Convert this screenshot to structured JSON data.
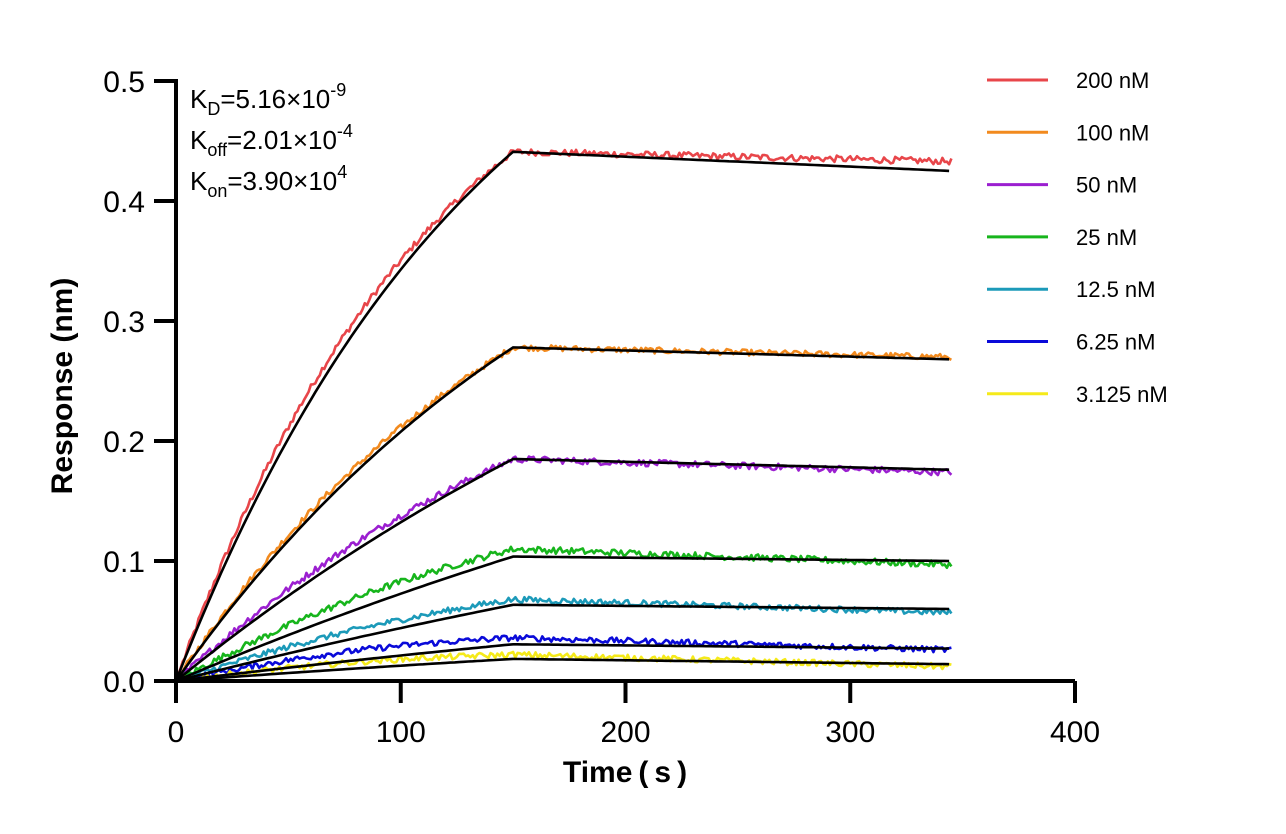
{
  "chart_data": {
    "type": "line",
    "xlabel": "Time ( s )",
    "ylabel": "Response (nm)",
    "xlim": [
      0,
      400
    ],
    "ylim": [
      0,
      0.5
    ],
    "x_ticks": [
      "0",
      "100",
      "200",
      "300",
      "400"
    ],
    "y_ticks": [
      "0.0",
      "0.1",
      "0.2",
      "0.3",
      "0.4",
      "0.5"
    ],
    "grid": false,
    "legend_position": "right",
    "association_end": 150,
    "measurement_end": 345,
    "annotations": {
      "kd": {
        "base": "K",
        "sub": "D",
        "text": "=5.16×10",
        "exp": "-9"
      },
      "koff": {
        "base": "K",
        "sub": "off",
        "text": "=2.01×10",
        "exp": "-4"
      },
      "kon": {
        "base": "K",
        "sub": "on",
        "text": "=3.90×10",
        "exp": "4"
      }
    },
    "fit_color": "#000000",
    "series": [
      {
        "name": "200 nM",
        "color": "#e8464a",
        "plateau": 0.441,
        "end": 0.433,
        "fit_end": 0.425,
        "k": 0.0085,
        "noise": 0.0028,
        "bump": 0.0
      },
      {
        "name": "100 nM",
        "color": "#f28a1e",
        "plateau": 0.278,
        "end": 0.27,
        "fit_end": 0.268,
        "k": 0.006,
        "noise": 0.0025,
        "bump": 0.0
      },
      {
        "name": "50 nM",
        "color": "#9b1fd0",
        "plateau": 0.185,
        "end": 0.174,
        "fit_end": 0.176,
        "k": 0.0035,
        "noise": 0.0028,
        "bump": 0.006
      },
      {
        "name": "25 nM",
        "color": "#17b51c",
        "plateau": 0.11,
        "end": 0.097,
        "fit_end": 0.1,
        "k": 0.0025,
        "noise": 0.0028,
        "bump": 0.007
      },
      {
        "name": "12.5 nM",
        "color": "#1c9ab9",
        "plateau": 0.068,
        "end": 0.057,
        "fit_end": 0.06,
        "k": 0.002,
        "noise": 0.0025,
        "bump": 0.005
      },
      {
        "name": "6.25 nM",
        "color": "#0a0ad9",
        "plateau": 0.036,
        "end": 0.026,
        "fit_end": 0.027,
        "k": 0.002,
        "noise": 0.0025,
        "bump": 0.006
      },
      {
        "name": "3.125 nM",
        "color": "#f5ea1a",
        "plateau": 0.022,
        "end": 0.012,
        "fit_end": 0.014,
        "k": 0.002,
        "noise": 0.0025,
        "bump": 0.004
      }
    ]
  }
}
